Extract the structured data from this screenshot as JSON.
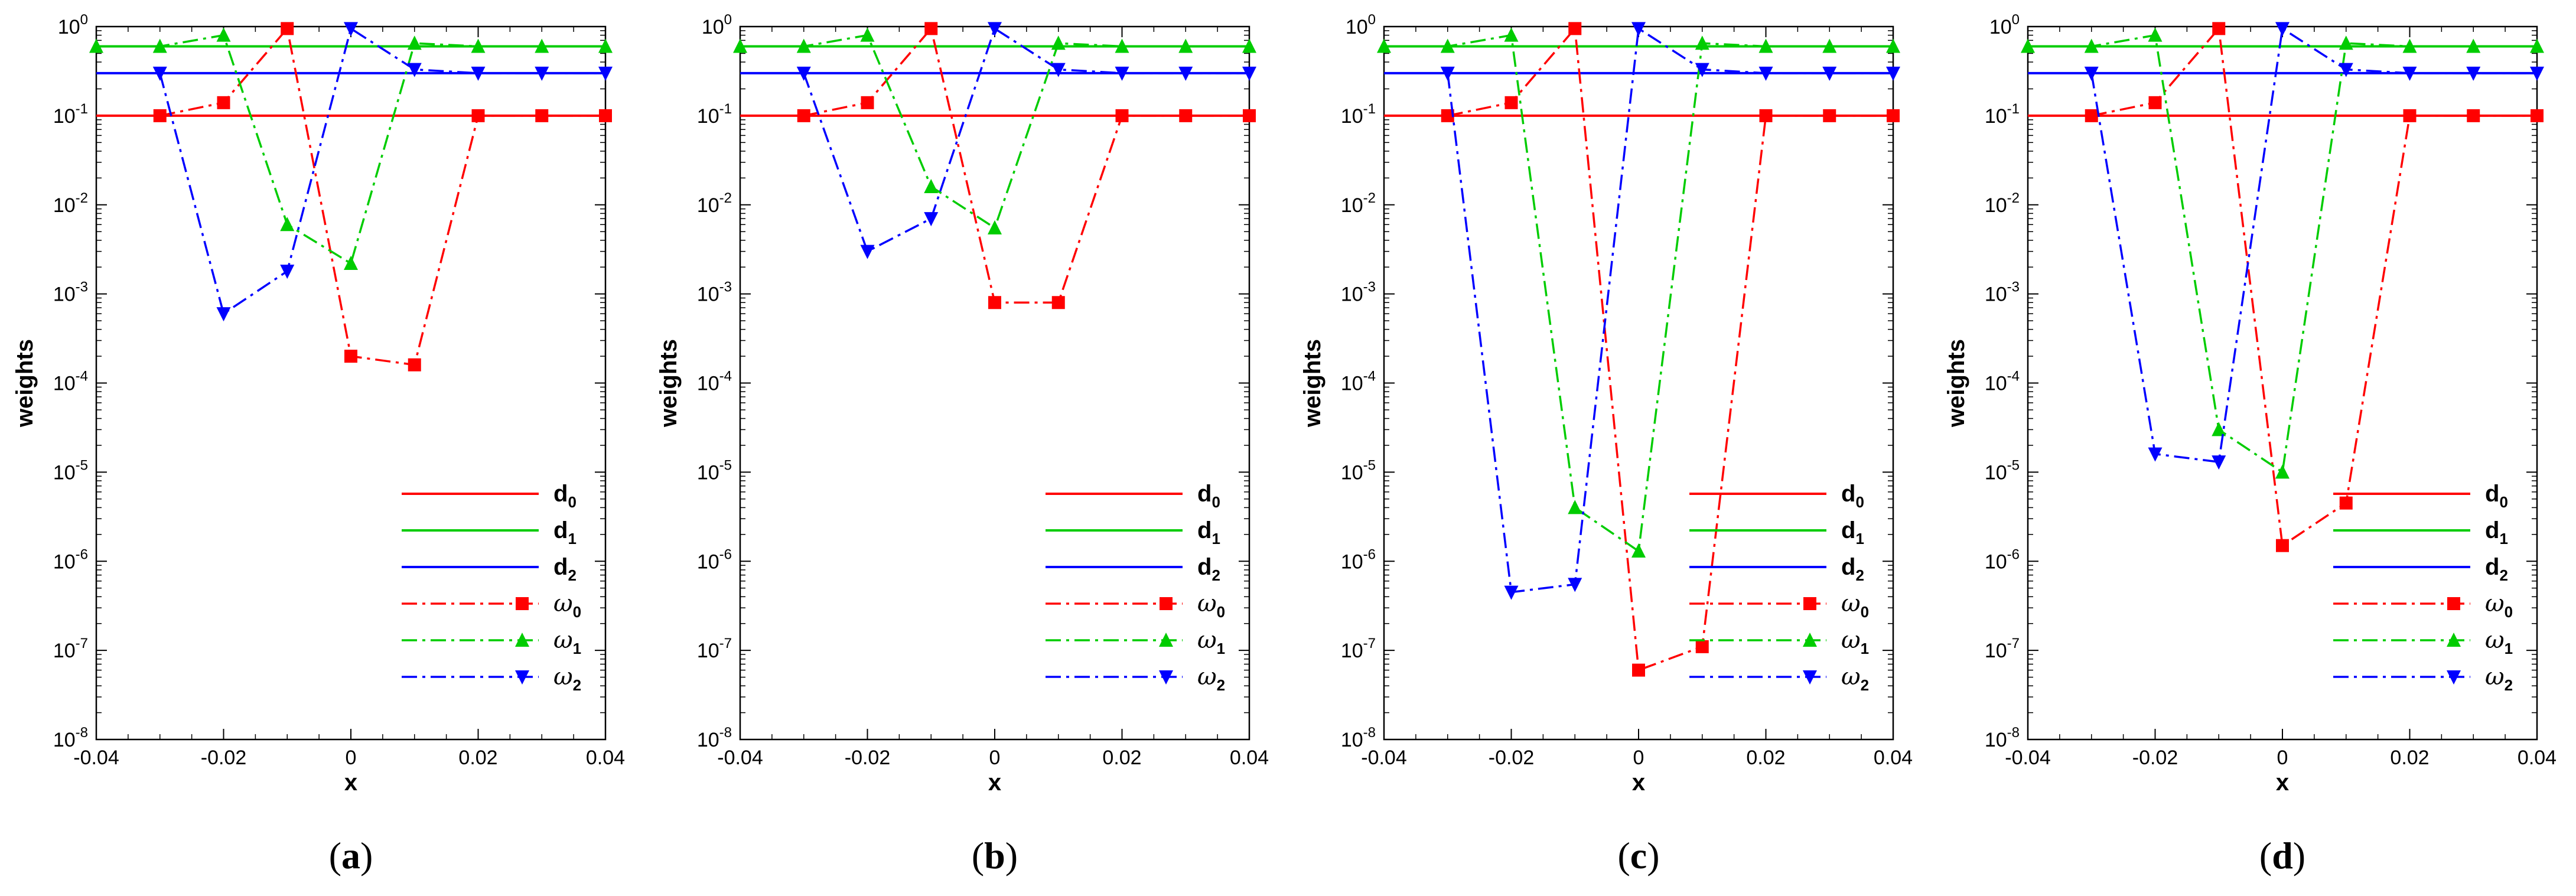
{
  "figure": {
    "panels": [
      "a",
      "b",
      "c",
      "d"
    ]
  },
  "chart_data": [
    {
      "type": "line",
      "panel_label": "a",
      "xlabel": "x",
      "ylabel": "weights",
      "xlim": [
        -0.04,
        0.04
      ],
      "ylim": [
        1e-08,
        1
      ],
      "yscale": "log",
      "xticks": [
        "-0.04",
        "-0.02",
        "0",
        "0.02",
        "0.04"
      ],
      "yticks": [
        {
          "base": "10",
          "exp": "-8"
        },
        {
          "base": "10",
          "exp": "-7"
        },
        {
          "base": "10",
          "exp": "-6"
        },
        {
          "base": "10",
          "exp": "-5"
        },
        {
          "base": "10",
          "exp": "-4"
        },
        {
          "base": "10",
          "exp": "-3"
        },
        {
          "base": "10",
          "exp": "-2"
        },
        {
          "base": "10",
          "exp": "-1"
        },
        {
          "base": "10",
          "exp": "0"
        }
      ],
      "legend_position": "bottom-right",
      "series": [
        {
          "name": "d",
          "sub": "0",
          "color": "#ff0000",
          "style": "solid",
          "marker": "none",
          "x": [
            -0.04,
            0.04
          ],
          "y": [
            0.1,
            0.1
          ]
        },
        {
          "name": "d",
          "sub": "1",
          "color": "#00cc00",
          "style": "solid",
          "marker": "none",
          "x": [
            -0.04,
            0.04
          ],
          "y": [
            0.6,
            0.6
          ]
        },
        {
          "name": "d",
          "sub": "2",
          "color": "#0000ff",
          "style": "solid",
          "marker": "none",
          "x": [
            -0.04,
            0.04
          ],
          "y": [
            0.3,
            0.3
          ]
        },
        {
          "name": "ω",
          "sub": "0",
          "color": "#ff0000",
          "style": "dashdot",
          "marker": "square",
          "x": [
            -0.03,
            -0.02,
            -0.01,
            0,
            0.01,
            0.02,
            0.03,
            0.04
          ],
          "y": [
            0.1,
            0.14,
            0.95,
            0.0002,
            0.00016,
            0.1,
            0.1,
            0.1
          ]
        },
        {
          "name": "ω",
          "sub": "1",
          "color": "#00cc00",
          "style": "dashdot",
          "marker": "triangle-up",
          "x": [
            -0.04,
            -0.03,
            -0.02,
            -0.01,
            0,
            0.01,
            0.02,
            0.03,
            0.04
          ],
          "y": [
            0.6,
            0.6,
            0.8,
            0.006,
            0.0022,
            0.65,
            0.6,
            0.6,
            0.6
          ]
        },
        {
          "name": "ω",
          "sub": "2",
          "color": "#0000ff",
          "style": "dashdot",
          "marker": "triangle-down",
          "x": [
            -0.03,
            -0.02,
            -0.01,
            0,
            0.01,
            0.02,
            0.03,
            0.04
          ],
          "y": [
            0.3,
            0.0006,
            0.0018,
            0.95,
            0.33,
            0.3,
            0.3,
            0.3
          ]
        }
      ]
    },
    {
      "type": "line",
      "panel_label": "b",
      "xlabel": "x",
      "ylabel": "weights",
      "xlim": [
        -0.04,
        0.04
      ],
      "ylim": [
        1e-08,
        1
      ],
      "yscale": "log",
      "xticks": [
        "-0.04",
        "-0.02",
        "0",
        "0.02",
        "0.04"
      ],
      "yticks": [
        {
          "base": "10",
          "exp": "-8"
        },
        {
          "base": "10",
          "exp": "-7"
        },
        {
          "base": "10",
          "exp": "-6"
        },
        {
          "base": "10",
          "exp": "-5"
        },
        {
          "base": "10",
          "exp": "-4"
        },
        {
          "base": "10",
          "exp": "-3"
        },
        {
          "base": "10",
          "exp": "-2"
        },
        {
          "base": "10",
          "exp": "-1"
        },
        {
          "base": "10",
          "exp": "0"
        }
      ],
      "legend_position": "bottom-right",
      "series": [
        {
          "name": "d",
          "sub": "0",
          "color": "#ff0000",
          "style": "solid",
          "marker": "none",
          "x": [
            -0.04,
            0.04
          ],
          "y": [
            0.1,
            0.1
          ]
        },
        {
          "name": "d",
          "sub": "1",
          "color": "#00cc00",
          "style": "solid",
          "marker": "none",
          "x": [
            -0.04,
            0.04
          ],
          "y": [
            0.6,
            0.6
          ]
        },
        {
          "name": "d",
          "sub": "2",
          "color": "#0000ff",
          "style": "solid",
          "marker": "none",
          "x": [
            -0.04,
            0.04
          ],
          "y": [
            0.3,
            0.3
          ]
        },
        {
          "name": "ω",
          "sub": "0",
          "color": "#ff0000",
          "style": "dashdot",
          "marker": "square",
          "x": [
            -0.03,
            -0.02,
            -0.01,
            0,
            0.01,
            0.02,
            0.03,
            0.04
          ],
          "y": [
            0.1,
            0.14,
            0.95,
            0.0008,
            0.0008,
            0.1,
            0.1,
            0.1
          ]
        },
        {
          "name": "ω",
          "sub": "1",
          "color": "#00cc00",
          "style": "dashdot",
          "marker": "triangle-up",
          "x": [
            -0.04,
            -0.03,
            -0.02,
            -0.01,
            0,
            0.01,
            0.02,
            0.03,
            0.04
          ],
          "y": [
            0.6,
            0.6,
            0.8,
            0.016,
            0.0055,
            0.65,
            0.6,
            0.6,
            0.6
          ]
        },
        {
          "name": "ω",
          "sub": "2",
          "color": "#0000ff",
          "style": "dashdot",
          "marker": "triangle-down",
          "x": [
            -0.03,
            -0.02,
            -0.01,
            0,
            0.01,
            0.02,
            0.03,
            0.04
          ],
          "y": [
            0.3,
            0.003,
            0.007,
            0.95,
            0.33,
            0.3,
            0.3,
            0.3
          ]
        }
      ]
    },
    {
      "type": "line",
      "panel_label": "c",
      "xlabel": "x",
      "ylabel": "weights",
      "xlim": [
        -0.04,
        0.04
      ],
      "ylim": [
        1e-08,
        1
      ],
      "yscale": "log",
      "xticks": [
        "-0.04",
        "-0.02",
        "0",
        "0.02",
        "0.04"
      ],
      "yticks": [
        {
          "base": "10",
          "exp": "-8"
        },
        {
          "base": "10",
          "exp": "-7"
        },
        {
          "base": "10",
          "exp": "-6"
        },
        {
          "base": "10",
          "exp": "-5"
        },
        {
          "base": "10",
          "exp": "-4"
        },
        {
          "base": "10",
          "exp": "-3"
        },
        {
          "base": "10",
          "exp": "-2"
        },
        {
          "base": "10",
          "exp": "-1"
        },
        {
          "base": "10",
          "exp": "0"
        }
      ],
      "legend_position": "bottom-right",
      "series": [
        {
          "name": "d",
          "sub": "0",
          "color": "#ff0000",
          "style": "solid",
          "marker": "none",
          "x": [
            -0.04,
            0.04
          ],
          "y": [
            0.1,
            0.1
          ]
        },
        {
          "name": "d",
          "sub": "1",
          "color": "#00cc00",
          "style": "solid",
          "marker": "none",
          "x": [
            -0.04,
            0.04
          ],
          "y": [
            0.6,
            0.6
          ]
        },
        {
          "name": "d",
          "sub": "2",
          "color": "#0000ff",
          "style": "solid",
          "marker": "none",
          "x": [
            -0.04,
            0.04
          ],
          "y": [
            0.3,
            0.3
          ]
        },
        {
          "name": "ω",
          "sub": "0",
          "color": "#ff0000",
          "style": "dashdot",
          "marker": "square",
          "x": [
            -0.03,
            -0.02,
            -0.01,
            0,
            0.01,
            0.02,
            0.03,
            0.04
          ],
          "y": [
            0.1,
            0.14,
            0.95,
            6e-08,
            1.1e-07,
            0.1,
            0.1,
            0.1
          ]
        },
        {
          "name": "ω",
          "sub": "1",
          "color": "#00cc00",
          "style": "dashdot",
          "marker": "triangle-up",
          "x": [
            -0.04,
            -0.03,
            -0.02,
            -0.01,
            0,
            0.01,
            0.02,
            0.03,
            0.04
          ],
          "y": [
            0.6,
            0.6,
            0.8,
            4e-06,
            1.3e-06,
            0.65,
            0.6,
            0.6,
            0.6
          ]
        },
        {
          "name": "ω",
          "sub": "2",
          "color": "#0000ff",
          "style": "dashdot",
          "marker": "triangle-down",
          "x": [
            -0.03,
            -0.02,
            -0.01,
            0,
            0.01,
            0.02,
            0.03,
            0.04
          ],
          "y": [
            0.3,
            4.5e-07,
            5.5e-07,
            0.95,
            0.33,
            0.3,
            0.3,
            0.3
          ]
        }
      ]
    },
    {
      "type": "line",
      "panel_label": "d",
      "xlabel": "x",
      "ylabel": "weights",
      "xlim": [
        -0.04,
        0.04
      ],
      "ylim": [
        1e-08,
        1
      ],
      "yscale": "log",
      "xticks": [
        "-0.04",
        "-0.02",
        "0",
        "0.02",
        "0.04"
      ],
      "yticks": [
        {
          "base": "10",
          "exp": "-8"
        },
        {
          "base": "10",
          "exp": "-7"
        },
        {
          "base": "10",
          "exp": "-6"
        },
        {
          "base": "10",
          "exp": "-5"
        },
        {
          "base": "10",
          "exp": "-4"
        },
        {
          "base": "10",
          "exp": "-3"
        },
        {
          "base": "10",
          "exp": "-2"
        },
        {
          "base": "10",
          "exp": "-1"
        },
        {
          "base": "10",
          "exp": "0"
        }
      ],
      "legend_position": "bottom-right",
      "series": [
        {
          "name": "d",
          "sub": "0",
          "color": "#ff0000",
          "style": "solid",
          "marker": "none",
          "x": [
            -0.04,
            0.04
          ],
          "y": [
            0.1,
            0.1
          ]
        },
        {
          "name": "d",
          "sub": "1",
          "color": "#00cc00",
          "style": "solid",
          "marker": "none",
          "x": [
            -0.04,
            0.04
          ],
          "y": [
            0.6,
            0.6
          ]
        },
        {
          "name": "d",
          "sub": "2",
          "color": "#0000ff",
          "style": "solid",
          "marker": "none",
          "x": [
            -0.04,
            0.04
          ],
          "y": [
            0.3,
            0.3
          ]
        },
        {
          "name": "ω",
          "sub": "0",
          "color": "#ff0000",
          "style": "dashdot",
          "marker": "square",
          "x": [
            -0.03,
            -0.02,
            -0.01,
            0,
            0.01,
            0.02,
            0.03,
            0.04
          ],
          "y": [
            0.1,
            0.14,
            0.95,
            1.5e-06,
            4.5e-06,
            0.1,
            0.1,
            0.1
          ]
        },
        {
          "name": "ω",
          "sub": "1",
          "color": "#00cc00",
          "style": "dashdot",
          "marker": "triangle-up",
          "x": [
            -0.04,
            -0.03,
            -0.02,
            -0.01,
            0,
            0.01,
            0.02,
            0.03,
            0.04
          ],
          "y": [
            0.6,
            0.6,
            0.8,
            3e-05,
            1e-05,
            0.65,
            0.6,
            0.6,
            0.6
          ]
        },
        {
          "name": "ω",
          "sub": "2",
          "color": "#0000ff",
          "style": "dashdot",
          "marker": "triangle-down",
          "x": [
            -0.03,
            -0.02,
            -0.01,
            0,
            0.01,
            0.02,
            0.03,
            0.04
          ],
          "y": [
            0.3,
            1.6e-05,
            1.3e-05,
            0.95,
            0.33,
            0.3,
            0.3,
            0.3
          ]
        }
      ]
    }
  ]
}
